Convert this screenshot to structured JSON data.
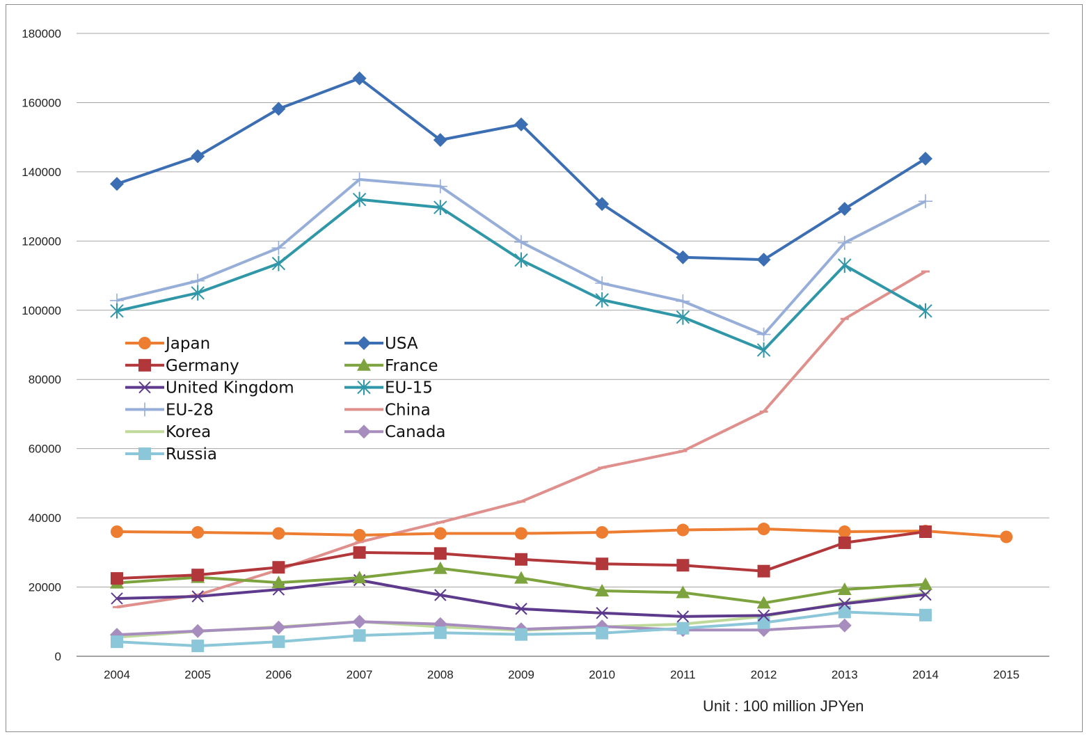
{
  "chart_data": {
    "type": "line",
    "title": "",
    "xlabel": "",
    "ylabel": "",
    "unit_note": "Unit :  100 million JPYen",
    "x": [
      2004,
      2005,
      2006,
      2007,
      2008,
      2009,
      2010,
      2011,
      2012,
      2013,
      2014,
      2015
    ],
    "x_tick_labels": [
      "2004",
      "2005",
      "2006",
      "2007",
      "2008",
      "2009",
      "2010",
      "2011",
      "2012",
      "2013",
      "2014",
      "2015"
    ],
    "y_tick_labels": [
      "0",
      "20000",
      "40000",
      "60000",
      "80000",
      "100000",
      "120000",
      "140000",
      "160000",
      "180000"
    ],
    "ylim": [
      0,
      180000
    ],
    "grid": true,
    "legend_position": "left, inside plot",
    "series": [
      {
        "name": "Japan",
        "color": "#ED7D31",
        "marker": "circle",
        "values": [
          36000,
          35800,
          35500,
          35000,
          35500,
          35500,
          35800,
          36500,
          36800,
          36000,
          36200,
          34500
        ]
      },
      {
        "name": "USA",
        "color": "#3C6EB4",
        "marker": "diamond",
        "values": [
          136500,
          144500,
          158200,
          167000,
          149200,
          153700,
          130700,
          115300,
          114600,
          129300,
          143800,
          null
        ]
      },
      {
        "name": "Germany",
        "color": "#B2373A",
        "marker": "square",
        "values": [
          22500,
          23500,
          25700,
          30000,
          29700,
          28000,
          26700,
          26300,
          24600,
          32800,
          36000,
          null
        ]
      },
      {
        "name": "France",
        "color": "#7DA33F",
        "marker": "triangle",
        "values": [
          21200,
          22800,
          21300,
          22700,
          25400,
          22600,
          18900,
          18400,
          15400,
          19300,
          20800,
          null
        ]
      },
      {
        "name": "United Kingdom",
        "color": "#5E3A8C",
        "marker": "x",
        "values": [
          16700,
          17300,
          19300,
          22000,
          17700,
          13700,
          12500,
          11500,
          11800,
          15200,
          17800,
          null
        ]
      },
      {
        "name": "EU-15",
        "color": "#2F97A8",
        "marker": "star",
        "values": [
          99800,
          105000,
          113500,
          132000,
          129700,
          114500,
          103000,
          98000,
          88500,
          113000,
          99800,
          null
        ]
      },
      {
        "name": "EU-28",
        "color": "#97AED9",
        "marker": "plus",
        "values": [
          102800,
          108500,
          118000,
          137800,
          135800,
          119700,
          107800,
          102600,
          93000,
          119500,
          131500,
          null
        ]
      },
      {
        "name": "China",
        "color": "#E0908C",
        "marker": "dash",
        "values": [
          14200,
          17700,
          25000,
          33000,
          38700,
          44700,
          54500,
          59300,
          70700,
          97500,
          111200,
          null
        ]
      },
      {
        "name": "Korea",
        "color": "#BFD99B",
        "marker": "dash",
        "values": [
          5500,
          7200,
          8500,
          10000,
          8500,
          7500,
          8500,
          9300,
          11500,
          15500,
          18200,
          null
        ]
      },
      {
        "name": "Canada",
        "color": "#A68DBD",
        "marker": "diamond",
        "values": [
          6200,
          7300,
          8300,
          10000,
          9300,
          7800,
          8600,
          7600,
          7600,
          8900,
          null,
          null
        ]
      },
      {
        "name": "Russia",
        "color": "#8CC6D9",
        "marker": "square",
        "values": [
          4200,
          3000,
          4200,
          6000,
          6800,
          6300,
          6700,
          8100,
          9700,
          12800,
          11900,
          null
        ]
      }
    ]
  }
}
